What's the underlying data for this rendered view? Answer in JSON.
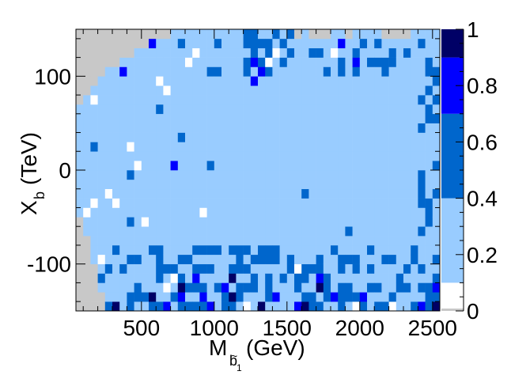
{
  "chart_data": {
    "type": "heatmap",
    "title": "",
    "xlabel": "M",
    "xlabel_sub": "b",
    "xlabel_sub_mark": "~",
    "xlabel_sub2": "1",
    "xlabel_unit": "(GeV)",
    "ylabel": "X",
    "ylabel_sub": "b",
    "ylabel_unit": "(TeV)",
    "xlim": [
      50,
      2550
    ],
    "ylim": [
      -150,
      150
    ],
    "xticks": [
      500,
      1000,
      1500,
      2000,
      2500
    ],
    "xtick_labels": [
      "500",
      "1000",
      "1500",
      "2000",
      "2500"
    ],
    "yticks": [
      -100,
      0,
      100
    ],
    "ytick_labels": [
      "-100",
      "0",
      "100"
    ],
    "color_scale": {
      "min": 0,
      "max": 1,
      "ticks": [
        "0",
        "0.2",
        "0.4",
        "0.6",
        "0.8",
        "1"
      ],
      "bands": [
        {
          "from": 0.0,
          "to": 0.1,
          "color": "#ffffff"
        },
        {
          "from": 0.1,
          "to": 0.4,
          "color": "#99ccff"
        },
        {
          "from": 0.4,
          "to": 0.7,
          "color": "#0066cc"
        },
        {
          "from": 0.7,
          "to": 0.9,
          "color": "#0000ff"
        },
        {
          "from": 0.9,
          "to": 1.0,
          "color": "#000066"
        }
      ],
      "empty_color": "#c8c8c8"
    },
    "grid": {
      "x_bins": 50,
      "y_bins": 30,
      "x_range": [
        50,
        2550
      ],
      "y_range": [
        -150,
        150
      ],
      "background_value": 0.25,
      "excluded_upper_left": [
        [
          50,
          65
        ],
        [
          100,
          75
        ],
        [
          150,
          90
        ],
        [
          200,
          95
        ],
        [
          300,
          110
        ],
        [
          400,
          120
        ],
        [
          500,
          130
        ],
        [
          600,
          140
        ],
        [
          800,
          150
        ]
      ],
      "excluded_lower_left": [
        [
          50,
          -45
        ],
        [
          100,
          -55
        ],
        [
          150,
          -80
        ],
        [
          200,
          -110
        ],
        [
          250,
          -140
        ]
      ],
      "excluded_top_right": [
        [
          1500,
          150
        ],
        [
          2000,
          150
        ],
        [
          2550,
          150
        ]
      ],
      "cells_dark": [
        [
          325,
          -145
        ],
        [
          1625,
          -145
        ],
        [
          2525,
          -145
        ],
        [
          1325,
          -145
        ],
        [
          1125,
          -115
        ],
        [
          575,
          -135
        ],
        [
          1125,
          -135
        ],
        [
          775,
          -125
        ],
        [
          1725,
          -125
        ]
      ],
      "cells_blue": [
        [
          725,
          5
        ],
        [
          925,
          -135
        ],
        [
          1825,
          -135
        ],
        [
          1875,
          135
        ],
        [
          1275,
          95
        ],
        [
          575,
          135
        ],
        [
          1325,
          105
        ],
        [
          1975,
          115
        ],
        [
          1275,
          115
        ],
        [
          375,
          105
        ],
        [
          675,
          -145
        ],
        [
          775,
          -135
        ],
        [
          875,
          -115
        ],
        [
          975,
          -145
        ],
        [
          1075,
          -125
        ],
        [
          1425,
          -135
        ],
        [
          1575,
          -145
        ],
        [
          1725,
          -115
        ],
        [
          2025,
          -135
        ],
        [
          2425,
          -145
        ],
        [
          2525,
          -125
        ]
      ],
      "cells_white": [
        [
          125,
          -45
        ],
        [
          175,
          -35
        ],
        [
          325,
          -35
        ],
        [
          525,
          -55
        ],
        [
          925,
          -45
        ],
        [
          1225,
          -145
        ],
        [
          1425,
          -135
        ],
        [
          1575,
          -105
        ],
        [
          2025,
          -135
        ],
        [
          1375,
          115
        ],
        [
          1425,
          125
        ],
        [
          1825,
          125
        ],
        [
          2275,
          145
        ],
        [
          875,
          125
        ],
        [
          825,
          115
        ],
        [
          625,
          95
        ],
        [
          675,
          85
        ],
        [
          175,
          75
        ],
        [
          425,
          25
        ],
        [
          475,
          5
        ],
        [
          275,
          -25
        ],
        [
          225,
          -95
        ],
        [
          1975,
          -145
        ],
        [
          2225,
          -145
        ],
        [
          675,
          -125
        ],
        [
          725,
          -115
        ]
      ]
    }
  }
}
